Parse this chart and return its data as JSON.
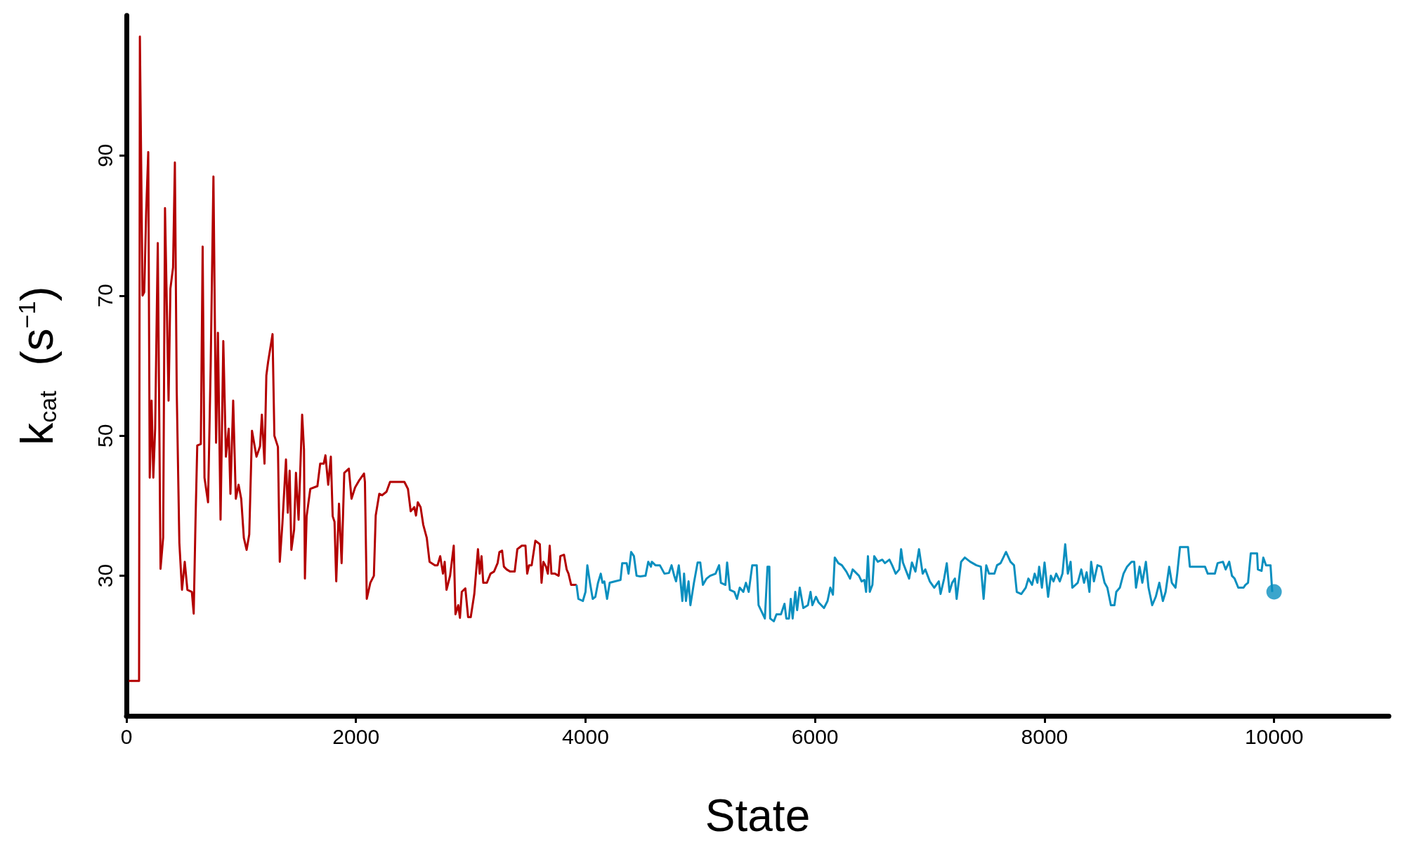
{
  "chart_data": {
    "type": "line",
    "xlabel": "State",
    "ylabel": "k$_{cat}$  (s$^{−1}$)",
    "xlim": [
      0,
      11000
    ],
    "ylim": [
      10,
      110
    ],
    "xticks": [
      0,
      2000,
      4000,
      6000,
      8000,
      10000
    ],
    "yticks": [
      30,
      50,
      70,
      90
    ],
    "series": [
      {
        "color": "#b30000",
        "x": [
          20,
          110,
          117,
          140,
          155,
          172,
          190,
          203,
          219,
          234,
          250,
          273,
          297,
          320,
          336,
          367,
          383,
          406,
          422,
          438,
          461,
          484,
          508,
          531,
          570,
          586,
          602,
          617,
          648,
          664,
          680,
          711,
          734,
          758,
          781,
          797,
          820,
          844,
          867,
          891,
          906,
          930,
          953,
          977,
          1000,
          1023,
          1047,
          1070,
          1094,
          1133,
          1164,
          1180,
          1203,
          1219,
          1234,
          1273,
          1289,
          1320,
          1336,
          1359,
          1390,
          1406,
          1422,
          1437,
          1461,
          1477,
          1500,
          1531,
          1547,
          1555,
          1570,
          1602,
          1664,
          1688,
          1719,
          1734,
          1758,
          1781,
          1797,
          1813,
          1828,
          1852,
          1875,
          1898,
          1938,
          1961,
          1992,
          2031,
          2070,
          2078,
          2094,
          2125,
          2156,
          2172,
          2203,
          2227,
          2266,
          2297,
          2328,
          2422,
          2453,
          2477,
          2508,
          2523,
          2539,
          2563,
          2586,
          2617,
          2641,
          2688,
          2711,
          2734,
          2758,
          2773,
          2789,
          2820,
          2852,
          2867,
          2891,
          2906,
          2922,
          2953,
          2977,
          3000,
          3031,
          3063,
          3078,
          3094,
          3109,
          3141,
          3172,
          3203,
          3234,
          3250,
          3273,
          3289,
          3313,
          3344,
          3383,
          3406,
          3445,
          3477,
          3492,
          3508,
          3531,
          3563,
          3602,
          3617,
          3633,
          3656,
          3672,
          3688,
          3703,
          3734,
          3766,
          3781,
          3813,
          3836,
          3852,
          3875,
          3922
        ],
        "values": [
          15,
          15,
          107,
          70,
          70.5,
          82,
          90.5,
          44,
          55,
          44,
          51,
          77.5,
          31,
          35.5,
          82.5,
          55,
          71,
          74,
          89,
          56.5,
          34.7,
          28,
          32,
          28,
          27.7,
          24.6,
          38,
          48.6,
          48.8,
          77,
          44,
          40.5,
          60,
          87,
          49,
          64.7,
          38,
          63.5,
          47,
          51,
          41.7,
          55,
          41,
          43,
          41,
          35.4,
          33.7,
          35.9,
          50.7,
          47,
          48.5,
          53,
          46,
          58.6,
          60.5,
          64.5,
          50,
          48.4,
          32,
          37.5,
          46.6,
          39,
          45,
          33.7,
          36.6,
          44.7,
          38,
          53,
          48,
          29.6,
          38.5,
          42.4,
          42.8,
          46,
          46,
          47.2,
          43,
          47,
          38.5,
          37.7,
          29.2,
          40.3,
          31.8,
          44.7,
          45.3,
          41,
          42.6,
          43.7,
          44.6,
          43.4,
          26.7,
          29,
          30,
          38.6,
          41.7,
          41.5,
          42,
          43.4,
          43.4,
          43.4,
          42.4,
          39.2,
          39.8,
          38.6,
          40.5,
          39.8,
          37.3,
          35.4,
          32,
          31.5,
          31.5,
          32.8,
          30.3,
          32,
          28,
          30,
          34.3,
          24.5,
          25.8,
          24,
          27.7,
          28.2,
          24.1,
          24.1,
          27.4,
          33.8,
          30.3,
          32.8,
          29,
          29,
          30.3,
          30.6,
          31.8,
          33.4,
          33.6,
          31.3,
          30.9,
          30.6,
          30.6,
          33.8,
          34.3,
          34.3,
          30.3,
          31.5,
          31.5,
          35,
          34.5,
          29,
          32,
          31.3,
          30.3,
          34.3,
          30.3,
          30.3,
          30,
          32.8,
          33,
          30.9,
          30.3,
          28.7,
          28.7
        ]
      },
      {
        "color": "#0a8fbf",
        "x": [
          3922,
          3938,
          3977,
          4000,
          4016,
          4039,
          4063,
          4086,
          4109,
          4133,
          4148,
          4164,
          4188,
          4211,
          4258,
          4305,
          4320,
          4359,
          4375,
          4398,
          4422,
          4445,
          4477,
          4523,
          4547,
          4570,
          4578,
          4609,
          4648,
          4688,
          4727,
          4750,
          4773,
          4789,
          4813,
          4828,
          4844,
          4859,
          4875,
          4898,
          4914,
          4945,
          4977,
          5000,
          5023,
          5055,
          5086,
          5133,
          5164,
          5180,
          5219,
          5234,
          5258,
          5297,
          5320,
          5344,
          5375,
          5398,
          5422,
          5453,
          5492,
          5508,
          5563,
          5586,
          5602,
          5609,
          5641,
          5664,
          5703,
          5734,
          5750,
          5773,
          5789,
          5805,
          5828,
          5844,
          5867,
          5898,
          5938,
          5961,
          5977,
          6008,
          6031,
          6078,
          6109,
          6133,
          6156,
          6172,
          6203,
          6234,
          6273,
          6305,
          6328,
          6383,
          6406,
          6430,
          6445,
          6461,
          6477,
          6500,
          6516,
          6547,
          6586,
          6609,
          6648,
          6672,
          6703,
          6734,
          6750,
          6766,
          6789,
          6820,
          6844,
          6875,
          6906,
          6938,
          6961,
          7000,
          7039,
          7078,
          7094,
          7125,
          7148,
          7172,
          7195,
          7219,
          7234,
          7273,
          7305,
          7352,
          7406,
          7445,
          7469,
          7492,
          7516,
          7563,
          7586,
          7617,
          7641,
          7664,
          7703,
          7734,
          7758,
          7797,
          7836,
          7859,
          7891,
          7914,
          7938,
          7953,
          7977,
          8000,
          8031,
          8055,
          8078,
          8102,
          8133,
          8156,
          8180,
          8203,
          8227,
          8242,
          8289,
          8320,
          8344,
          8367,
          8391,
          8406,
          8430,
          8461,
          8492,
          8523,
          8547,
          8578,
          8609,
          8625,
          8656,
          8688,
          8719,
          8758,
          8781,
          8797,
          8828,
          8852,
          8883,
          8906,
          8938,
          8969,
          9000,
          9031,
          9055,
          9086,
          9109,
          9141,
          9156,
          9180,
          9250,
          9266,
          9398,
          9422,
          9484,
          9508,
          9555,
          9578,
          9609,
          9633,
          9656,
          9688,
          9734,
          9750,
          9773,
          9797,
          9852,
          9859,
          9891,
          9906,
          9930,
          9969,
          9984
        ],
        "values": [
          28.7,
          26.7,
          26.4,
          27.7,
          31.5,
          29,
          26.7,
          27,
          29,
          30.3,
          29,
          29.2,
          26.7,
          29,
          29.2,
          29.4,
          31.8,
          31.8,
          30.3,
          33.4,
          32.8,
          30,
          29.9,
          30,
          32,
          31.3,
          32,
          31.5,
          31.5,
          30.3,
          30.4,
          31.5,
          30,
          29.2,
          31.5,
          29.2,
          26.4,
          30.3,
          26.4,
          29.2,
          25.8,
          29,
          31.9,
          31.9,
          28.7,
          29.6,
          30,
          30.3,
          31.5,
          29,
          28.7,
          31.9,
          28,
          27.7,
          26.7,
          28.3,
          27.7,
          29,
          27.7,
          31.5,
          31.5,
          25.8,
          23.9,
          31.3,
          31.3,
          23.9,
          23.5,
          24.5,
          24.5,
          26,
          23.9,
          23.9,
          26.7,
          23.9,
          27.7,
          25.1,
          28.3,
          25.4,
          25.8,
          27.7,
          25.8,
          27,
          26.2,
          25.4,
          26.4,
          28.3,
          27.3,
          32.6,
          31.8,
          31.5,
          30.6,
          29.6,
          30.9,
          30,
          29.2,
          29.4,
          27.7,
          32.8,
          27.7,
          28.7,
          32.8,
          32,
          32.3,
          31.8,
          32.3,
          31.5,
          30.3,
          30.9,
          33.8,
          31.9,
          30.9,
          29.6,
          31.9,
          30.6,
          33.8,
          30.3,
          30.9,
          29.2,
          28.3,
          29.2,
          27.4,
          29.6,
          31.8,
          27.7,
          29,
          29.6,
          26.7,
          32,
          32.6,
          32,
          31.5,
          31.3,
          26.7,
          31.5,
          30.3,
          30.3,
          31.5,
          31.8,
          32.6,
          33.4,
          32,
          31.5,
          27.7,
          27.4,
          28.3,
          29.6,
          28.7,
          30.3,
          29,
          31.3,
          28.3,
          31.9,
          27,
          30,
          29.2,
          30.3,
          29.2,
          30.3,
          34.5,
          30.3,
          32,
          28.3,
          29,
          30.9,
          29,
          30.5,
          27.7,
          32,
          29.2,
          31.5,
          31.3,
          29,
          28.3,
          25.8,
          25.8,
          27.7,
          28.3,
          30.3,
          31.3,
          32,
          32,
          28.3,
          31.3,
          29,
          32,
          28.3,
          25.8,
          27,
          29,
          26.4,
          27.7,
          31.3,
          29,
          28.3,
          30.3,
          34.1,
          34.1,
          31.3,
          31.3,
          30.3,
          30.3,
          31.8,
          32,
          30.9,
          32,
          30,
          29.6,
          28.3,
          28.3,
          28.7,
          29,
          33.2,
          33.2,
          30.9,
          30.7,
          32.6,
          31.5,
          31.5,
          27.7
        ]
      },
      {
        "type": "scatter",
        "color": "#0a8fbf",
        "x": [
          10000
        ],
        "values": [
          27.7
        ]
      }
    ]
  }
}
